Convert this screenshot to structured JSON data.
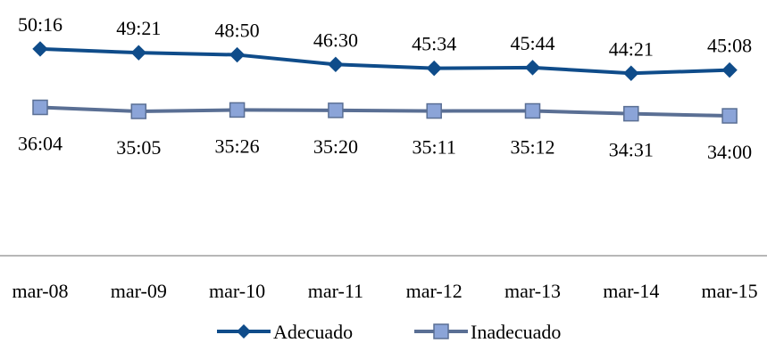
{
  "chart_data": {
    "type": "line",
    "title": "",
    "xlabel": "",
    "ylabel": "",
    "categories": [
      "mar-08",
      "mar-09",
      "mar-10",
      "mar-11",
      "mar-12",
      "mar-13",
      "mar-14",
      "mar-15"
    ],
    "series": [
      {
        "name": "Adecuado",
        "color": "#0f4c8a",
        "marker": "diamond",
        "labels": [
          "50:16",
          "49:21",
          "48:50",
          "46:30",
          "45:34",
          "45:44",
          "44:21",
          "45:08"
        ],
        "values_minutes": [
          50.267,
          49.35,
          48.833,
          46.5,
          45.567,
          45.733,
          44.35,
          45.133
        ]
      },
      {
        "name": "Inadecuado",
        "color": "#5a6f94",
        "marker": "square",
        "marker_fill": "#8ba4d8",
        "labels": [
          "36:04",
          "35:05",
          "35:26",
          "35:20",
          "35:11",
          "35:12",
          "34:31",
          "34:00"
        ],
        "values_minutes": [
          36.067,
          35.083,
          35.433,
          35.333,
          35.183,
          35.2,
          34.517,
          34.0
        ]
      }
    ],
    "ylim": [
      0,
      60
    ],
    "grid": false,
    "legend_position": "bottom"
  }
}
